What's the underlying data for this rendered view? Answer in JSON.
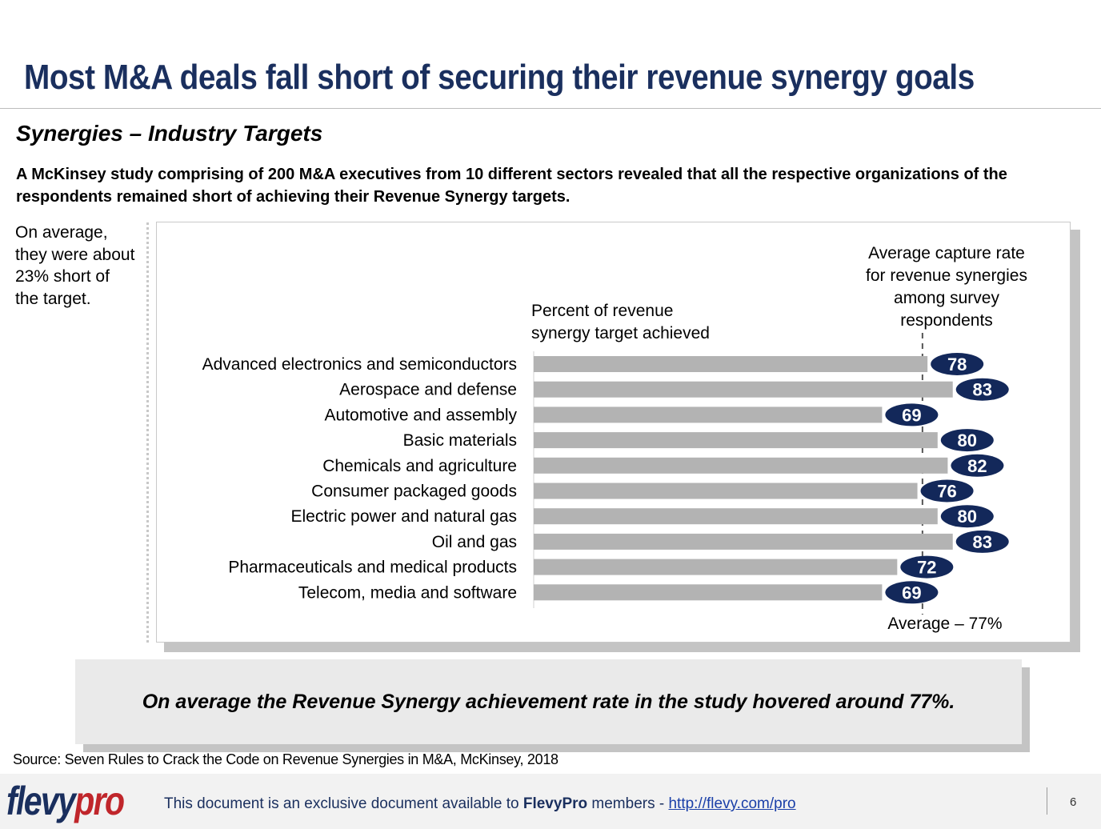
{
  "header": {
    "title": "Most M&A deals fall short of securing their revenue synergy goals",
    "subtitle": "Synergies – Industry Targets",
    "intro": "A McKinsey study comprising of 200 M&A executives from 10 different sectors revealed that all the respective organizations of the respondents remained short of achieving their Revenue Synergy targets."
  },
  "side_note": "On average, they were about 23% short of the target.",
  "chart_data": {
    "type": "bar",
    "orientation": "horizontal",
    "column_header": [
      "Percent of revenue",
      "synergy target achieved"
    ],
    "reference_label": [
      "Average capture rate",
      "for revenue synergies",
      "among survey",
      "respondents"
    ],
    "average_value": 77,
    "average_label": "Average – 77%",
    "categories": [
      "Advanced electronics and semiconductors",
      "Aerospace and defense",
      "Automotive and assembly",
      "Basic materials",
      "Chemicals and agriculture",
      "Consumer packaged goods",
      "Electric power and natural gas",
      "Oil and gas",
      "Pharmaceuticals and medical products",
      "Telecom, media and software"
    ],
    "values": [
      78,
      83,
      69,
      80,
      82,
      76,
      80,
      83,
      72,
      69
    ],
    "xlim": [
      0,
      100
    ],
    "bar_color": "#b3b3b3",
    "badge_color": "#13285a"
  },
  "callout": "On average the Revenue Synergy achievement rate in the study hovered around 77%.",
  "source": "Source: Seven Rules to Crack the Code on Revenue Synergies in M&A, McKinsey, 2018",
  "footer": {
    "logo_part1": "flevy",
    "logo_part2": "pro",
    "text_before": "This document is an exclusive document available to ",
    "text_brand": "FlevyPro",
    "text_after": " members - ",
    "link": "http://flevy.com/pro",
    "page_number": "6"
  }
}
